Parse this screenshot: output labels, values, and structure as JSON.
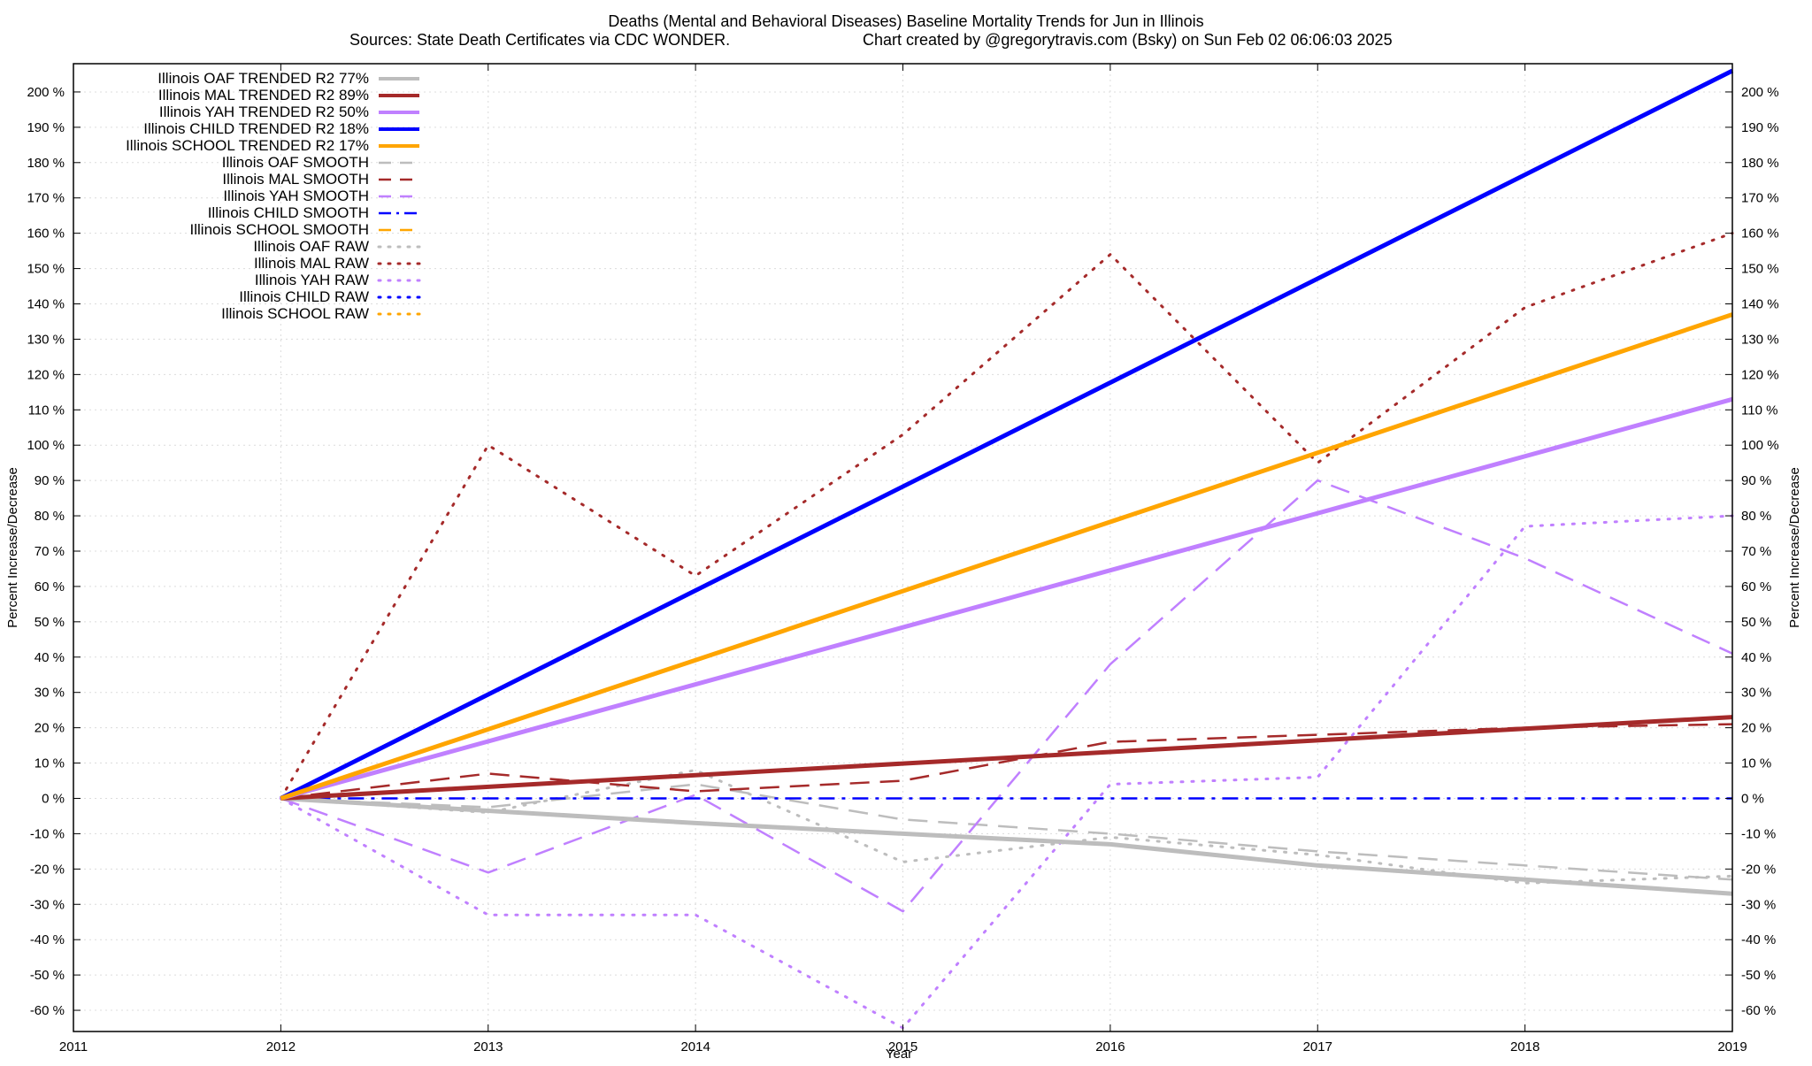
{
  "chart_data": {
    "type": "line",
    "title": "Deaths (Mental and Behavioral Diseases)  Baseline Mortality Trends for Jun in Illinois",
    "subtitle_left": "Sources: State Death Certificates via CDC WONDER.",
    "subtitle_right": "Chart created by @gregorytravis.com (Bsky) on Sun Feb 02 06:06:03 2025",
    "xlabel": "Year",
    "ylabel_left": "Percent Increase/Decrease",
    "ylabel_right": "Percent Increase/Decrease",
    "xlim": [
      2011,
      2019
    ],
    "ylim": [
      -66,
      208
    ],
    "x_ticks": [
      2011,
      2012,
      2013,
      2014,
      2015,
      2016,
      2017,
      2018,
      2019
    ],
    "x_tick_labels": [
      "2011",
      "2012",
      "2013",
      "2014",
      "2015",
      "2016",
      "2017",
      "2018",
      "2019"
    ],
    "y_ticks": [
      -60,
      -50,
      -40,
      -30,
      -20,
      -10,
      0,
      10,
      20,
      30,
      40,
      50,
      60,
      70,
      80,
      90,
      100,
      110,
      120,
      130,
      140,
      150,
      160,
      170,
      180,
      190,
      200
    ],
    "y_tick_labels": [
      "-60 %",
      "-50 %",
      "-40 %",
      "-30 %",
      "-20 %",
      "-10 %",
      "0 %",
      "10 %",
      "20 %",
      "30 %",
      "40 %",
      "50 %",
      "60 %",
      "70 %",
      "80 %",
      "90 %",
      "100 %",
      "110 %",
      "120 %",
      "130 %",
      "140 %",
      "150 %",
      "160 %",
      "170 %",
      "180 %",
      "190 %",
      "200 %"
    ],
    "grid": true,
    "legend_placement": "top-left",
    "series": [
      {
        "name": "Illinois OAF TRENDED R2  77%",
        "color": "#bdbdbd",
        "style": "solid",
        "x": [
          2012,
          2013,
          2014,
          2015,
          2016,
          2017,
          2018,
          2019
        ],
        "y": [
          0,
          -3.5,
          -7,
          -10,
          -13,
          -19,
          -23,
          -27
        ]
      },
      {
        "name": "Illinois MAL TRENDED R2  89%",
        "color": "#a52a2a",
        "style": "solid",
        "x": [
          2012,
          2019
        ],
        "y": [
          0,
          23
        ]
      },
      {
        "name": "Illinois YAH TRENDED R2  50%",
        "color": "#c080ff",
        "style": "solid",
        "x": [
          2012,
          2019
        ],
        "y": [
          0,
          113
        ]
      },
      {
        "name": "Illinois CHILD TRENDED R2  18%",
        "color": "#0000ff",
        "style": "solid",
        "x": [
          2012,
          2019
        ],
        "y": [
          0,
          206
        ]
      },
      {
        "name": "Illinois SCHOOL TRENDED R2  17%",
        "color": "#ffa500",
        "style": "solid",
        "x": [
          2012,
          2019
        ],
        "y": [
          0,
          137
        ]
      },
      {
        "name": "Illinois OAF SMOOTH",
        "color": "#bdbdbd",
        "style": "dashed",
        "x": [
          2012,
          2013,
          2014,
          2015,
          2016,
          2017,
          2018,
          2019
        ],
        "y": [
          0,
          -2.5,
          4,
          -6,
          -10,
          -15,
          -19,
          -23
        ]
      },
      {
        "name": "Illinois MAL SMOOTH",
        "color": "#a52a2a",
        "style": "dashed",
        "x": [
          2012,
          2013,
          2014,
          2015,
          2016,
          2017,
          2018,
          2019
        ],
        "y": [
          0,
          7,
          2,
          5,
          16,
          18,
          20,
          21
        ]
      },
      {
        "name": "Illinois YAH SMOOTH",
        "color": "#c080ff",
        "style": "dashed",
        "x": [
          2012,
          2013,
          2014,
          2015,
          2016,
          2017,
          2018,
          2019
        ],
        "y": [
          0,
          -21,
          1,
          -32,
          38,
          90,
          68,
          41
        ]
      },
      {
        "name": "Illinois CHILD SMOOTH",
        "color": "#0000ff",
        "style": "dashdot",
        "x": [
          2012,
          2019
        ],
        "y": [
          0,
          0
        ]
      },
      {
        "name": "Illinois SCHOOL SMOOTH",
        "color": "#ffa500",
        "style": "dashed",
        "x": [],
        "y": []
      },
      {
        "name": "Illinois OAF RAW",
        "color": "#bdbdbd",
        "style": "dotted",
        "x": [
          2012,
          2013,
          2014,
          2015,
          2016,
          2017,
          2018,
          2019
        ],
        "y": [
          0,
          -4,
          8,
          -18,
          -11,
          -16,
          -24,
          -22
        ]
      },
      {
        "name": "Illinois MAL RAW",
        "color": "#a52a2a",
        "style": "dotted",
        "x": [
          2012,
          2013,
          2014,
          2015,
          2016,
          2017,
          2018,
          2019
        ],
        "y": [
          0,
          100,
          63,
          103,
          154,
          95,
          139,
          160
        ]
      },
      {
        "name": "Illinois YAH RAW",
        "color": "#c080ff",
        "style": "dotted",
        "x": [
          2012,
          2013,
          2014,
          2015,
          2016,
          2017,
          2018,
          2019
        ],
        "y": [
          0,
          -33,
          -33,
          -65,
          4,
          6,
          77,
          80
        ]
      },
      {
        "name": "Illinois CHILD RAW",
        "color": "#0000ff",
        "style": "dotted",
        "x": [],
        "y": []
      },
      {
        "name": "Illinois SCHOOL RAW",
        "color": "#ffa500",
        "style": "dotted",
        "x": [],
        "y": []
      }
    ]
  }
}
